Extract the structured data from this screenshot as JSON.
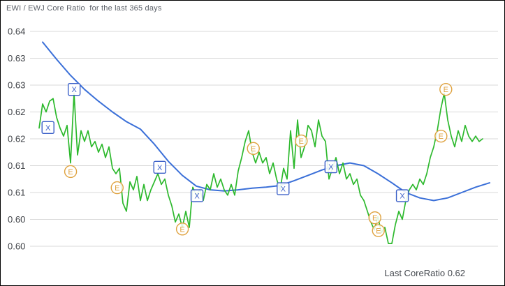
{
  "window_title": "EWI / EWJ Core Ratio  for the last 365 days",
  "chart_data": {
    "type": "line",
    "title": "EWI / EWJ Core Ratio  for the last 365 days",
    "xlabel": "",
    "ylabel": "",
    "x_range": "last 365 days",
    "x_tick_labels": [],
    "grid": "horizontal",
    "grid_color": "#d9d9d9",
    "legend": "none",
    "footer_text": "Last CoreRatio 0.62",
    "last_core_ratio": "0.62",
    "y_axis": {
      "min": 0.6,
      "max": 0.64,
      "step": 0.005,
      "ticks": [
        {
          "value": 0.64,
          "label": "0.64"
        },
        {
          "value": 0.635,
          "label": "0.63"
        },
        {
          "value": 0.63,
          "label": "0.63"
        },
        {
          "value": 0.625,
          "label": "0.62"
        },
        {
          "value": 0.62,
          "label": "0.62"
        },
        {
          "value": 0.615,
          "label": "0.61"
        },
        {
          "value": 0.61,
          "label": "0.61"
        },
        {
          "value": 0.605,
          "label": "0.60"
        },
        {
          "value": 0.6,
          "label": "0.60"
        }
      ]
    },
    "series": [
      {
        "name": "CoreRatio (EWI / EWJ)",
        "color": "#2db92d",
        "stroke_width": 1.7,
        "values": [
          0.622,
          0.6265,
          0.625,
          0.627,
          0.6275,
          0.624,
          0.622,
          0.6205,
          0.6225,
          0.6155,
          0.6285,
          0.617,
          0.6215,
          0.6195,
          0.6215,
          0.6185,
          0.6195,
          0.6175,
          0.619,
          0.6165,
          0.6185,
          0.6145,
          0.6135,
          0.6145,
          0.608,
          0.6065,
          0.612,
          0.6105,
          0.613,
          0.6085,
          0.6115,
          0.6085,
          0.6105,
          0.612,
          0.6135,
          0.6115,
          0.6125,
          0.6095,
          0.6075,
          0.6045,
          0.606,
          0.6035,
          0.6065,
          0.6035,
          0.611,
          0.6095,
          0.6105,
          0.6085,
          0.6115,
          0.6105,
          0.6135,
          0.611,
          0.6125,
          0.6105,
          0.6095,
          0.6115,
          0.6095,
          0.614,
          0.6165,
          0.6195,
          0.6215,
          0.6175,
          0.6155,
          0.6175,
          0.6155,
          0.6165,
          0.6135,
          0.6155,
          0.6125,
          0.6105,
          0.6145,
          0.6125,
          0.6215,
          0.6145,
          0.6235,
          0.6165,
          0.6185,
          0.6225,
          0.6215,
          0.6185,
          0.6235,
          0.6205,
          0.6195,
          0.6125,
          0.6145,
          0.6165,
          0.6135,
          0.6155,
          0.6125,
          0.6135,
          0.6115,
          0.6125,
          0.6095,
          0.6085,
          0.6065,
          0.6045,
          0.603,
          0.6055,
          0.6025,
          0.6035,
          0.6005,
          0.6005,
          0.604,
          0.6065,
          0.605,
          0.6085,
          0.6105,
          0.6115,
          0.6105,
          0.6125,
          0.6115,
          0.6135,
          0.6165,
          0.6185,
          0.6215,
          0.6255,
          0.6285,
          0.6235,
          0.6205,
          0.6185,
          0.6215,
          0.6195,
          0.6225,
          0.6205,
          0.6195,
          0.6205,
          0.6195,
          0.62
        ]
      },
      {
        "name": "Moving average",
        "color": "#3a6fd8",
        "stroke_width": 2.0,
        "values": [
          0.638,
          0.6348,
          0.6318,
          0.6292,
          0.627,
          0.625,
          0.6232,
          0.6218,
          0.619,
          0.6158,
          0.6132,
          0.6112,
          0.6105,
          0.6103,
          0.6105,
          0.6108,
          0.611,
          0.6113,
          0.6122,
          0.6132,
          0.6142,
          0.615,
          0.6155,
          0.615,
          0.6135,
          0.6118,
          0.61,
          0.609,
          0.6085,
          0.609,
          0.61,
          0.611,
          0.6118
        ]
      }
    ],
    "markers": {
      "pos_unit": "fraction of the 365-day x-range",
      "x": {
        "label": "X",
        "color": "#3a5fc8",
        "shape": "square",
        "points": [
          {
            "pos": 0.02,
            "value": 0.6221
          },
          {
            "pos": 0.079,
            "value": 0.6292
          },
          {
            "pos": 0.272,
            "value": 0.6147
          },
          {
            "pos": 0.356,
            "value": 0.6094
          },
          {
            "pos": 0.55,
            "value": 0.6107
          },
          {
            "pos": 0.658,
            "value": 0.6148
          },
          {
            "pos": 0.819,
            "value": 0.6094
          }
        ]
      },
      "e": {
        "label": "E",
        "color": "#dfa23f",
        "shape": "circle",
        "points": [
          {
            "pos": 0.071,
            "value": 0.6139
          },
          {
            "pos": 0.176,
            "value": 0.6109
          },
          {
            "pos": 0.323,
            "value": 0.6032
          },
          {
            "pos": 0.483,
            "value": 0.6182
          },
          {
            "pos": 0.591,
            "value": 0.6196
          },
          {
            "pos": 0.757,
            "value": 0.6053
          },
          {
            "pos": 0.765,
            "value": 0.6029
          },
          {
            "pos": 0.906,
            "value": 0.6205
          },
          {
            "pos": 0.917,
            "value": 0.6292
          }
        ]
      }
    }
  }
}
